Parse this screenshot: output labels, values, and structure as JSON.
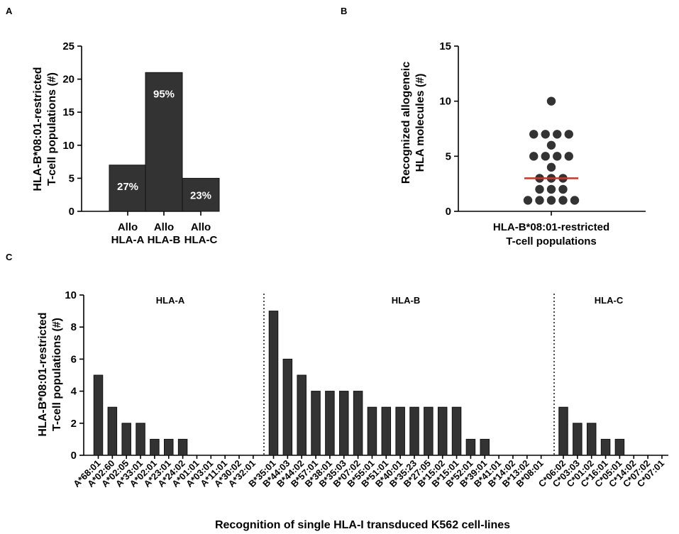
{
  "panels": {
    "a": "A",
    "b": "B",
    "c": "C"
  },
  "chart_data": [
    {
      "type": "bar",
      "ylabel": [
        "HLA-B*08:01-restricted",
        "T-cell populations (#)"
      ],
      "ylim": [
        0,
        25
      ],
      "yticks": [
        0,
        5,
        10,
        15,
        20,
        25
      ],
      "categories": [
        [
          "Allo",
          "HLA-A"
        ],
        [
          "Allo",
          "HLA-B"
        ],
        [
          "Allo",
          "HLA-C"
        ]
      ],
      "values": [
        7,
        21,
        5
      ],
      "bar_labels": [
        "27%",
        "95%",
        "23%"
      ]
    },
    {
      "type": "scatter",
      "ylabel": [
        "Recognized allogeneic",
        "HLA molecules (#)"
      ],
      "ylim": [
        0,
        15
      ],
      "yticks": [
        0,
        5,
        10,
        15
      ],
      "xlabel": [
        "HLA-B*08:01-restricted",
        "T-cell populations"
      ],
      "points": [
        10,
        7,
        7,
        7,
        7,
        6,
        5,
        5,
        5,
        5,
        4,
        3,
        3,
        3,
        2,
        2,
        2,
        1,
        1,
        1,
        1,
        1
      ],
      "median": 3,
      "median_color": "#c0392b"
    },
    {
      "type": "bar",
      "ylabel": [
        "HLA-B*08:01-restricted",
        "T-cell populations (#)"
      ],
      "xlabel": "Recognition of single HLA-I transduced K562 cell-lines",
      "ylim": [
        0,
        10
      ],
      "yticks": [
        0,
        2,
        4,
        6,
        8,
        10
      ],
      "groups": [
        {
          "name": "HLA-A",
          "categories": [
            "A*68:01",
            "A*02:60",
            "A*02:05",
            "A*33:01",
            "A*02:01",
            "A*23:01",
            "A*24:02",
            "A*01:01",
            "A*03:01",
            "A*11:01",
            "A*30:02",
            "A*32:01"
          ],
          "values": [
            5,
            3,
            2,
            2,
            1,
            1,
            1,
            0,
            0,
            0,
            0,
            0
          ]
        },
        {
          "name": "HLA-B",
          "categories": [
            "B*35:01",
            "B*44:03",
            "B*44:02",
            "B*57:01",
            "B*38:01",
            "B*35:03",
            "B*07:02",
            "B*55:01",
            "B*51:01",
            "B*40:01",
            "B*35:23",
            "B*27:05",
            "B*15:02",
            "B*15:01",
            "B*52:01",
            "B*39:01",
            "B*41:01",
            "B*14:02",
            "B*13:02",
            "B*08:01"
          ],
          "values": [
            9,
            6,
            5,
            4,
            4,
            4,
            4,
            3,
            3,
            3,
            3,
            3,
            3,
            3,
            1,
            1,
            0,
            0,
            0,
            0
          ]
        },
        {
          "name": "HLA-C",
          "categories": [
            "C*06:02",
            "C*03:03",
            "C*01:02",
            "C*16:01",
            "C*05:01",
            "C*14:02",
            "C*07:02",
            "C*07:01"
          ],
          "values": [
            3,
            2,
            2,
            1,
            1,
            0,
            0,
            0
          ]
        }
      ]
    }
  ]
}
